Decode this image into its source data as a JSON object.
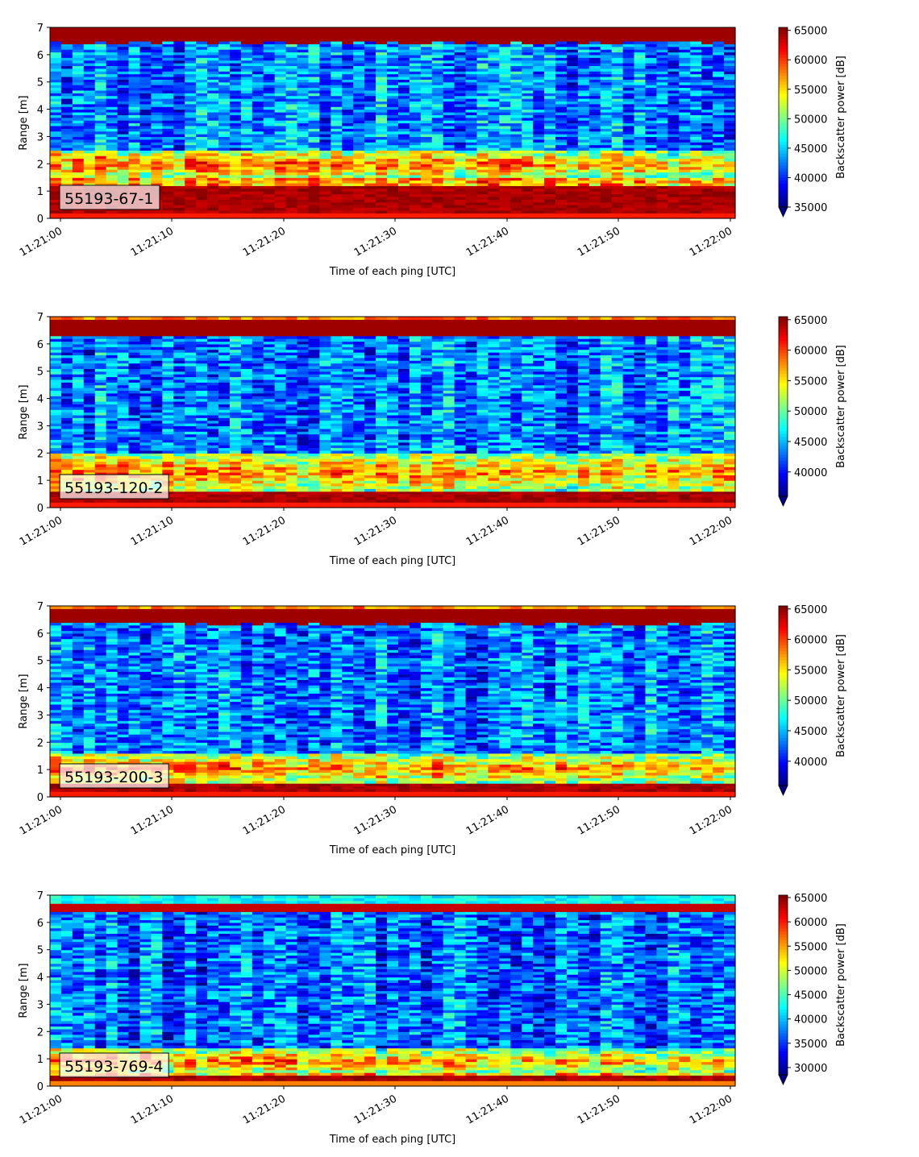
{
  "chart_data": [
    {
      "type": "heatmap",
      "label": "55193-67-1",
      "xlabel": "Time of each ping [UTC]",
      "ylabel": "Range [m]",
      "x_ticks": [
        "11:21:00",
        "11:21:10",
        "11:21:20",
        "11:21:30",
        "11:21:40",
        "11:21:50",
        "11:22:00"
      ],
      "y_ticks": [
        0,
        1,
        2,
        3,
        4,
        5,
        6,
        7
      ],
      "ylim": [
        0,
        7
      ],
      "colorbar": {
        "label": "Backscatter power [dB]",
        "ticks": [
          35000,
          40000,
          45000,
          50000,
          55000,
          60000,
          65000
        ],
        "range": [
          35000,
          65500
        ],
        "colormap": "jet",
        "extend": "min"
      },
      "bands": {
        "top_edge": 6.45,
        "bottom_bright": [
          0.25,
          1.15
        ],
        "mid_bright": [
          1.5,
          2.5
        ]
      }
    },
    {
      "type": "heatmap",
      "label": "55193-120-2",
      "xlabel": "Time of each ping [UTC]",
      "ylabel": "Range [m]",
      "x_ticks": [
        "11:21:00",
        "11:21:10",
        "11:21:20",
        "11:21:30",
        "11:21:40",
        "11:21:50",
        "11:22:00"
      ],
      "y_ticks": [
        0,
        1,
        2,
        3,
        4,
        5,
        6,
        7
      ],
      "ylim": [
        0,
        7
      ],
      "colorbar": {
        "label": "Backscatter power [dB]",
        "ticks": [
          40000,
          45000,
          50000,
          55000,
          60000,
          65000
        ],
        "range": [
          36000,
          65500
        ],
        "colormap": "jet",
        "extend": "min"
      },
      "bands": {
        "top_edge": 6.3,
        "bottom_bright": [
          0.25,
          0.55
        ],
        "mid_bright": [
          0.6,
          2.0
        ]
      }
    },
    {
      "type": "heatmap",
      "label": "55193-200-3",
      "xlabel": "Time of each ping [UTC]",
      "ylabel": "Range [m]",
      "x_ticks": [
        "11:21:00",
        "11:21:10",
        "11:21:20",
        "11:21:30",
        "11:21:40",
        "11:21:50",
        "11:22:00"
      ],
      "y_ticks": [
        0,
        1,
        2,
        3,
        4,
        5,
        6,
        7
      ],
      "ylim": [
        0,
        7
      ],
      "colorbar": {
        "label": "Backscatter power [dB]",
        "ticks": [
          40000,
          45000,
          50000,
          55000,
          60000,
          65000
        ],
        "range": [
          36000,
          65500
        ],
        "colormap": "jet",
        "extend": "min"
      },
      "bands": {
        "top_edge": 6.35,
        "bottom_bright": [
          0.2,
          0.45
        ],
        "mid_bright": [
          0.5,
          1.6
        ]
      }
    },
    {
      "type": "heatmap",
      "label": "55193-769-4",
      "xlabel": "Time of each ping [UTC]",
      "ylabel": "Range [m]",
      "x_ticks": [
        "11:21:00",
        "11:21:10",
        "11:21:20",
        "11:21:30",
        "11:21:40",
        "11:21:50",
        "11:22:00"
      ],
      "y_ticks": [
        0,
        1,
        2,
        3,
        4,
        5,
        6,
        7
      ],
      "ylim": [
        0,
        7
      ],
      "colorbar": {
        "label": "Backscatter power [dB]",
        "ticks": [
          30000,
          35000,
          40000,
          45000,
          50000,
          55000,
          60000,
          65000
        ],
        "range": [
          28500,
          65500
        ],
        "colormap": "jet",
        "extend": "min"
      },
      "bands": {
        "top_edge": 6.4,
        "bottom_bright": [
          0.25,
          0.4
        ],
        "mid_bright": [
          0.45,
          1.4
        ]
      }
    }
  ]
}
